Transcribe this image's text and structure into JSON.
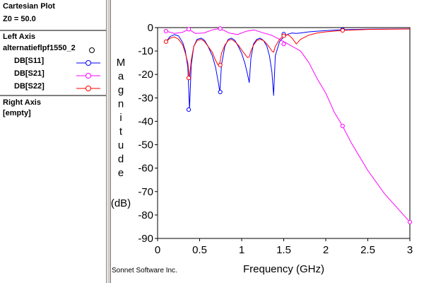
{
  "panel": {
    "title": "Cartesian Plot",
    "z0": "Z0 = 50.0",
    "left_axis_title": "Left Axis",
    "file_name": "alternatieflpf1550_2",
    "traces": [
      {
        "label": "DB[S11]",
        "color": "#0000ff"
      },
      {
        "label": "DB[S21]",
        "color": "#ff00ff"
      },
      {
        "label": "DB[S22]",
        "color": "#ff0000"
      }
    ],
    "right_axis_title": "Right Axis",
    "right_axis_value": "[empty]"
  },
  "credit": "Sonnet Software Inc.",
  "chart_data": {
    "type": "line",
    "title": "",
    "xlabel": "Frequency (GHz)",
    "ylabel_letters": [
      "M",
      "a",
      "g",
      "n",
      "i",
      "t",
      "u",
      "d",
      "e"
    ],
    "ylabel_unit": "(dB)",
    "xlim": [
      0,
      3
    ],
    "ylim": [
      -90,
      0
    ],
    "x_ticks": [
      0,
      0.5,
      1,
      1.5,
      2,
      2.5,
      3
    ],
    "x_tick_labels": [
      "0",
      "0.5",
      "1",
      "1.5",
      "2",
      "2.5",
      "3"
    ],
    "y_ticks": [
      0,
      -10,
      -20,
      -30,
      -40,
      -50,
      -60,
      -70,
      -80,
      -90
    ],
    "y_tick_labels": [
      "0",
      "-10",
      "-20",
      "-30",
      "-40",
      "-50",
      "-60",
      "-70",
      "-80",
      "-90"
    ],
    "series": [
      {
        "name": "DB[S11]",
        "color": "#0000ff",
        "x": [
          0.1,
          0.15,
          0.2,
          0.25,
          0.3,
          0.33,
          0.36,
          0.38,
          0.4,
          0.43,
          0.47,
          0.52,
          0.56,
          0.6,
          0.65,
          0.69,
          0.72,
          0.74,
          0.76,
          0.8,
          0.84,
          0.88,
          0.92,
          0.96,
          1.0,
          1.04,
          1.07,
          1.09,
          1.11,
          1.14,
          1.18,
          1.22,
          1.26,
          1.3,
          1.33,
          1.36,
          1.38,
          1.4,
          1.45,
          1.5,
          1.55,
          1.6,
          1.65,
          1.7,
          1.8,
          2.0,
          2.2,
          2.5,
          3.0
        ],
        "y": [
          -6,
          -3.8,
          -3,
          -3.6,
          -6.5,
          -10,
          -17,
          -35,
          -16,
          -8,
          -5,
          -4.5,
          -5.5,
          -8,
          -12,
          -17,
          -23,
          -27.5,
          -16,
          -8,
          -5,
          -4.5,
          -5.5,
          -8,
          -11,
          -15.5,
          -20,
          -23.5,
          -13,
          -7,
          -5,
          -4.5,
          -5.5,
          -8,
          -12,
          -19,
          -29,
          -12,
          -6,
          -4,
          -2.8,
          -2.3,
          -2.5,
          -2.3,
          -1.8,
          -1.3,
          -0.9,
          -0.7,
          -0.5
        ],
        "markers": [
          [
            0.37,
            -35
          ],
          [
            0.745,
            -27.5
          ],
          [
            1.5,
            -2.8
          ],
          [
            2.2,
            -0.9
          ]
        ]
      },
      {
        "name": "DB[S21]",
        "color": "#ff00ff",
        "x": [
          0.1,
          0.2,
          0.3,
          0.37,
          0.45,
          0.55,
          0.65,
          0.745,
          0.85,
          0.95,
          1.05,
          1.15,
          1.25,
          1.35,
          1.45,
          1.55,
          1.6,
          1.7,
          1.8,
          1.9,
          2.0,
          2.1,
          2.2,
          2.3,
          2.4,
          2.5,
          2.6,
          2.7,
          2.8,
          2.9,
          3.0
        ],
        "y": [
          -1.5,
          -2.5,
          -2,
          -0.7,
          -2.5,
          -2.3,
          -1,
          -0.4,
          -2.3,
          -3,
          -1.6,
          -1,
          -2.2,
          -3.2,
          -5,
          -7,
          -8,
          -10,
          -15,
          -22,
          -28,
          -36,
          -42,
          -49,
          -55,
          -61,
          -66,
          -71,
          -75,
          -79,
          -83
        ],
        "markers": [
          [
            0.1,
            -1.5
          ],
          [
            0.37,
            -0.7
          ],
          [
            0.745,
            -0.4
          ],
          [
            1.5,
            -7
          ],
          [
            2.2,
            -42
          ],
          [
            3.0,
            -83
          ]
        ]
      },
      {
        "name": "DB[S22]",
        "color": "#ff0000",
        "x": [
          0.1,
          0.15,
          0.2,
          0.25,
          0.3,
          0.33,
          0.36,
          0.38,
          0.4,
          0.43,
          0.47,
          0.52,
          0.56,
          0.6,
          0.65,
          0.69,
          0.72,
          0.74,
          0.76,
          0.8,
          0.84,
          0.88,
          0.92,
          0.96,
          1.0,
          1.04,
          1.07,
          1.09,
          1.11,
          1.14,
          1.18,
          1.22,
          1.26,
          1.3,
          1.33,
          1.36,
          1.38,
          1.4,
          1.45,
          1.5,
          1.55,
          1.6,
          1.65,
          1.7,
          1.8,
          1.9,
          2.0,
          2.2,
          2.5,
          3.0
        ],
        "y": [
          -6,
          -4.5,
          -4,
          -5,
          -7.5,
          -11,
          -15,
          -21.5,
          -14,
          -8,
          -5.5,
          -5,
          -6,
          -8,
          -10.5,
          -14,
          -16,
          -15,
          -11,
          -7.5,
          -5.5,
          -5,
          -6,
          -7.5,
          -9.5,
          -11.5,
          -12.8,
          -12.5,
          -10,
          -7.5,
          -5.5,
          -5,
          -5.5,
          -7,
          -8.5,
          -10,
          -10.5,
          -8,
          -5,
          -3.5,
          -3,
          -4.5,
          -7,
          -5,
          -3.2,
          -2.3,
          -1.8,
          -1.2,
          -0.8,
          -0.6
        ],
        "markers": [
          [
            0.1,
            -6
          ],
          [
            0.37,
            -21.5
          ],
          [
            0.745,
            -16
          ],
          [
            1.5,
            -3.5
          ],
          [
            2.2,
            -1.2
          ]
        ]
      }
    ]
  }
}
